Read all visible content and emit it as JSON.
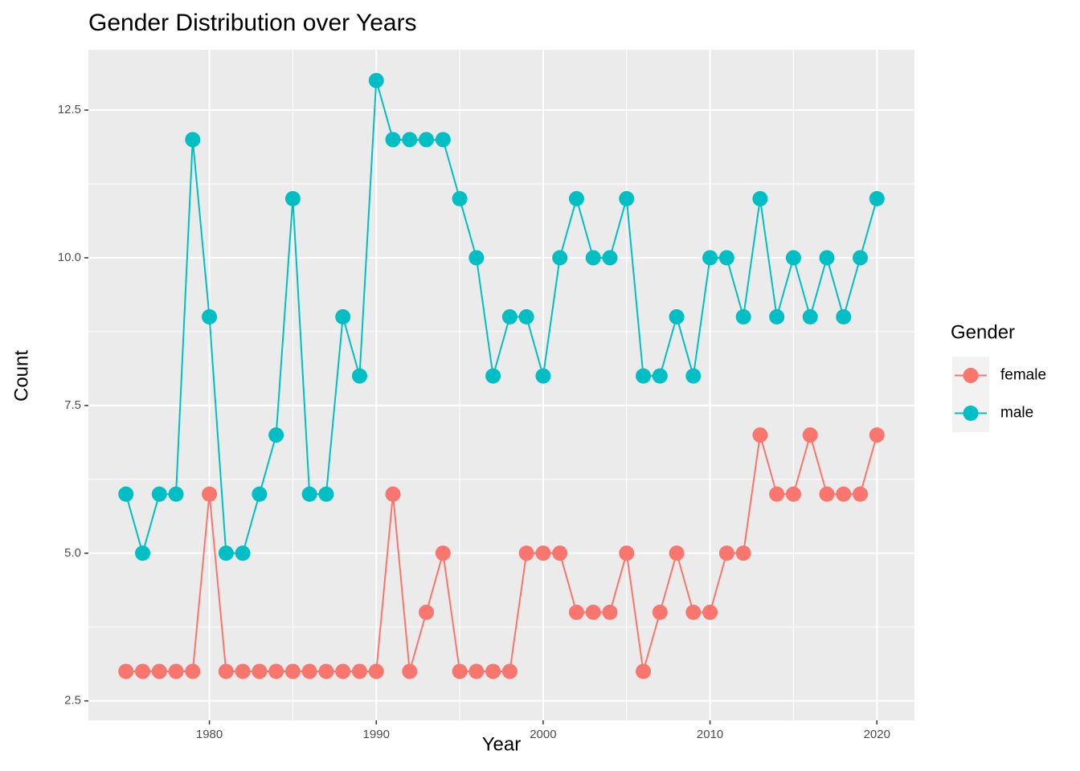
{
  "chart_data": {
    "type": "line",
    "title": "Gender Distribution over Years",
    "x_label": "Year",
    "y_label": "Count",
    "legend_title": "Gender",
    "legend": "right",
    "grid": true,
    "x": [
      1975,
      1976,
      1977,
      1978,
      1979,
      1980,
      1981,
      1982,
      1983,
      1984,
      1985,
      1986,
      1987,
      1988,
      1989,
      1990,
      1991,
      1992,
      1993,
      1994,
      1995,
      1996,
      1997,
      1998,
      1999,
      2000,
      2001,
      2002,
      2003,
      2004,
      2005,
      2006,
      2007,
      2008,
      2009,
      2010,
      2011,
      2012,
      2013,
      2014,
      2015,
      2016,
      2017,
      2018,
      2019,
      2020
    ],
    "series": [
      {
        "name": "female",
        "color": "#F8766D",
        "values": [
          3,
          3,
          3,
          3,
          3,
          6,
          3,
          3,
          3,
          3,
          3,
          3,
          3,
          3,
          3,
          3,
          6,
          3,
          4,
          5,
          3,
          3,
          3,
          3,
          5,
          5,
          5,
          4,
          4,
          4,
          5,
          3,
          4,
          5,
          4,
          4,
          5,
          5,
          7,
          6,
          6,
          7,
          6,
          6,
          6,
          7
        ]
      },
      {
        "name": "male",
        "color": "#00BFC4",
        "values": [
          6,
          5,
          6,
          6,
          12,
          9,
          5,
          5,
          6,
          7,
          11,
          6,
          6,
          9,
          8,
          13,
          12,
          12,
          12,
          12,
          11,
          10,
          8,
          9,
          9,
          8,
          10,
          11,
          10,
          10,
          11,
          8,
          8,
          9,
          8,
          10,
          10,
          9,
          11,
          9,
          10,
          9,
          10,
          9,
          10,
          11
        ]
      }
    ],
    "xlim": [
      1972.75,
      2022.25
    ],
    "xticks": [
      1980,
      1990,
      2000,
      2010,
      2020
    ],
    "ylim": [
      2.17,
      13.52
    ],
    "yticks": [
      2.5,
      {
        "value": 5,
        "label": "5.0"
      },
      7.5,
      {
        "value": 10,
        "label": "10.0"
      },
      12.5
    ]
  }
}
